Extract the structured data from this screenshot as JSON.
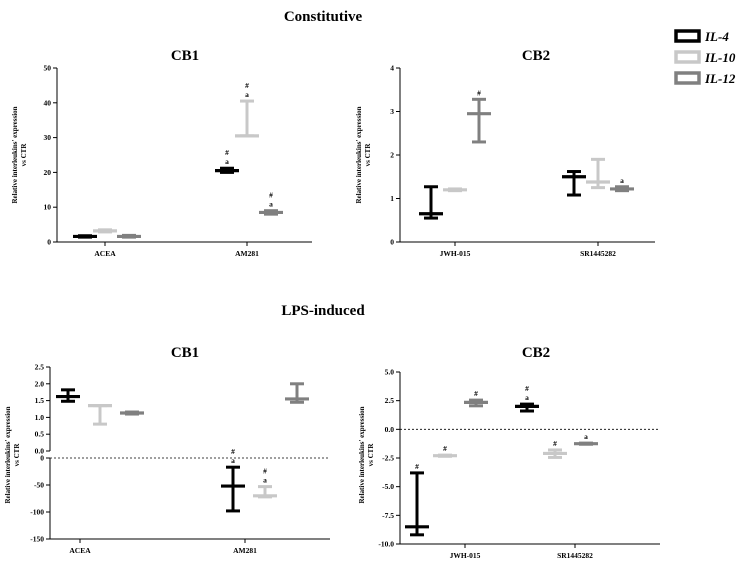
{
  "colors": {
    "IL-4": "#000000",
    "IL-10": "#c8c8c8",
    "IL-12": "#808080"
  },
  "sections": {
    "constitutive": "Constitutive",
    "lps": "LPS-induced"
  },
  "legend": [
    "IL-4",
    "IL-10",
    "IL-12"
  ],
  "chart_data": [
    {
      "id": "const_cb1",
      "type": "scatter",
      "title": "CB1",
      "ylabel_1": "Relative interleukins' expression",
      "ylabel_2": "vs CTR",
      "categories": [
        "ACEA",
        "AM281"
      ],
      "ylim": [
        0,
        50
      ],
      "yticks": [
        0,
        10,
        20,
        30,
        40,
        50
      ],
      "series": [
        {
          "name": "IL-4",
          "points": [
            {
              "mean": 1.6,
              "low": 1.4,
              "high": 1.8,
              "ann": []
            },
            {
              "mean": 20.5,
              "low": 20.0,
              "high": 21.2,
              "ann": [
                "a",
                "#"
              ]
            }
          ]
        },
        {
          "name": "IL-10",
          "points": [
            {
              "mean": 3.2,
              "low": 2.9,
              "high": 3.5,
              "ann": []
            },
            {
              "mean": 30.5,
              "low": 30.5,
              "high": 40.5,
              "ann": [
                "a",
                "#"
              ]
            }
          ]
        },
        {
          "name": "IL-12",
          "points": [
            {
              "mean": 1.6,
              "low": 1.4,
              "high": 1.9,
              "ann": []
            },
            {
              "mean": 8.5,
              "low": 8.0,
              "high": 9.0,
              "ann": [
                "a",
                "#"
              ]
            }
          ]
        }
      ]
    },
    {
      "id": "const_cb2",
      "type": "scatter",
      "title": "CB2",
      "ylabel_1": "Relative interleukins' expression",
      "ylabel_2": "vs CTR",
      "categories": [
        "JWH-015",
        "SR1445282"
      ],
      "ylim": [
        0,
        4
      ],
      "yticks": [
        0,
        1,
        2,
        3,
        4
      ],
      "series": [
        {
          "name": "IL-4",
          "points": [
            {
              "mean": 0.65,
              "low": 0.55,
              "high": 1.27,
              "ann": []
            },
            {
              "mean": 1.5,
              "low": 1.08,
              "high": 1.62,
              "ann": []
            }
          ]
        },
        {
          "name": "IL-10",
          "points": [
            {
              "mean": 1.2,
              "low": 1.18,
              "high": 1.22,
              "ann": []
            },
            {
              "mean": 1.38,
              "low": 1.25,
              "high": 1.9,
              "ann": []
            }
          ]
        },
        {
          "name": "IL-12",
          "points": [
            {
              "mean": 2.95,
              "low": 2.3,
              "high": 3.28,
              "ann": [
                "#"
              ]
            },
            {
              "mean": 1.22,
              "low": 1.18,
              "high": 1.27,
              "ann": [
                "a"
              ]
            }
          ]
        }
      ]
    },
    {
      "id": "lps_cb1",
      "type": "scatter",
      "title": "CB1",
      "ylabel_1": "Relative interleukins' expression",
      "ylabel_2": "vs CTR",
      "categories": [
        "ACEA",
        "AM281"
      ],
      "upper_range": [
        0,
        2.5
      ],
      "upper_ticks": [
        "0.0",
        "0.5",
        "1.0",
        "1.5",
        "2.0",
        "2.5"
      ],
      "lower_range": [
        -150,
        0
      ],
      "lower_ticks": [
        "-150",
        "-100",
        "-50",
        "0"
      ],
      "series": [
        {
          "name": "IL-4",
          "points": [
            {
              "mean": 1.62,
              "low": 1.48,
              "high": 1.82,
              "ann": []
            },
            {
              "mean": -52,
              "low": -98,
              "high": -17,
              "ann": [
                "a",
                "#"
              ]
            }
          ]
        },
        {
          "name": "IL-10",
          "points": [
            {
              "mean": 1.35,
              "low": 0.8,
              "high": 1.35,
              "ann": []
            },
            {
              "mean": -70,
              "low": -72,
              "high": -53,
              "ann": [
                "a",
                "#"
              ]
            }
          ]
        },
        {
          "name": "IL-12",
          "points": [
            {
              "mean": 1.13,
              "low": 1.1,
              "high": 1.16,
              "ann": []
            },
            {
              "mean": 1.55,
              "low": 1.45,
              "high": 2.0,
              "ann": []
            }
          ]
        }
      ]
    },
    {
      "id": "lps_cb2",
      "type": "scatter",
      "title": "CB2",
      "ylabel_1": "Relative interleukins' expression",
      "ylabel_2": "vs CTR",
      "categories": [
        "JWH-015",
        "SR1445282"
      ],
      "ylim": [
        -10,
        5
      ],
      "yticks": [
        "-10.0",
        "-7.5",
        "-5.0",
        "-2.5",
        "0.0",
        "2.5",
        "5.0"
      ],
      "series": [
        {
          "name": "IL-4",
          "points": [
            {
              "mean": -8.5,
              "low": -9.2,
              "high": -3.8,
              "ann": [
                "#"
              ]
            },
            {
              "mean": 2.0,
              "low": 1.6,
              "high": 2.2,
              "ann": [
                "a",
                "#"
              ]
            }
          ]
        },
        {
          "name": "IL-10",
          "points": [
            {
              "mean": -2.3,
              "low": -2.35,
              "high": -2.25,
              "ann": [
                "#"
              ]
            },
            {
              "mean": -2.1,
              "low": -2.45,
              "high": -1.8,
              "ann": [
                "#"
              ]
            }
          ]
        },
        {
          "name": "IL-12",
          "points": [
            {
              "mean": 2.35,
              "low": 2.05,
              "high": 2.55,
              "ann": [
                "#"
              ]
            },
            {
              "mean": -1.25,
              "low": -1.3,
              "high": -1.2,
              "ann": [
                "a"
              ]
            }
          ]
        }
      ]
    }
  ]
}
